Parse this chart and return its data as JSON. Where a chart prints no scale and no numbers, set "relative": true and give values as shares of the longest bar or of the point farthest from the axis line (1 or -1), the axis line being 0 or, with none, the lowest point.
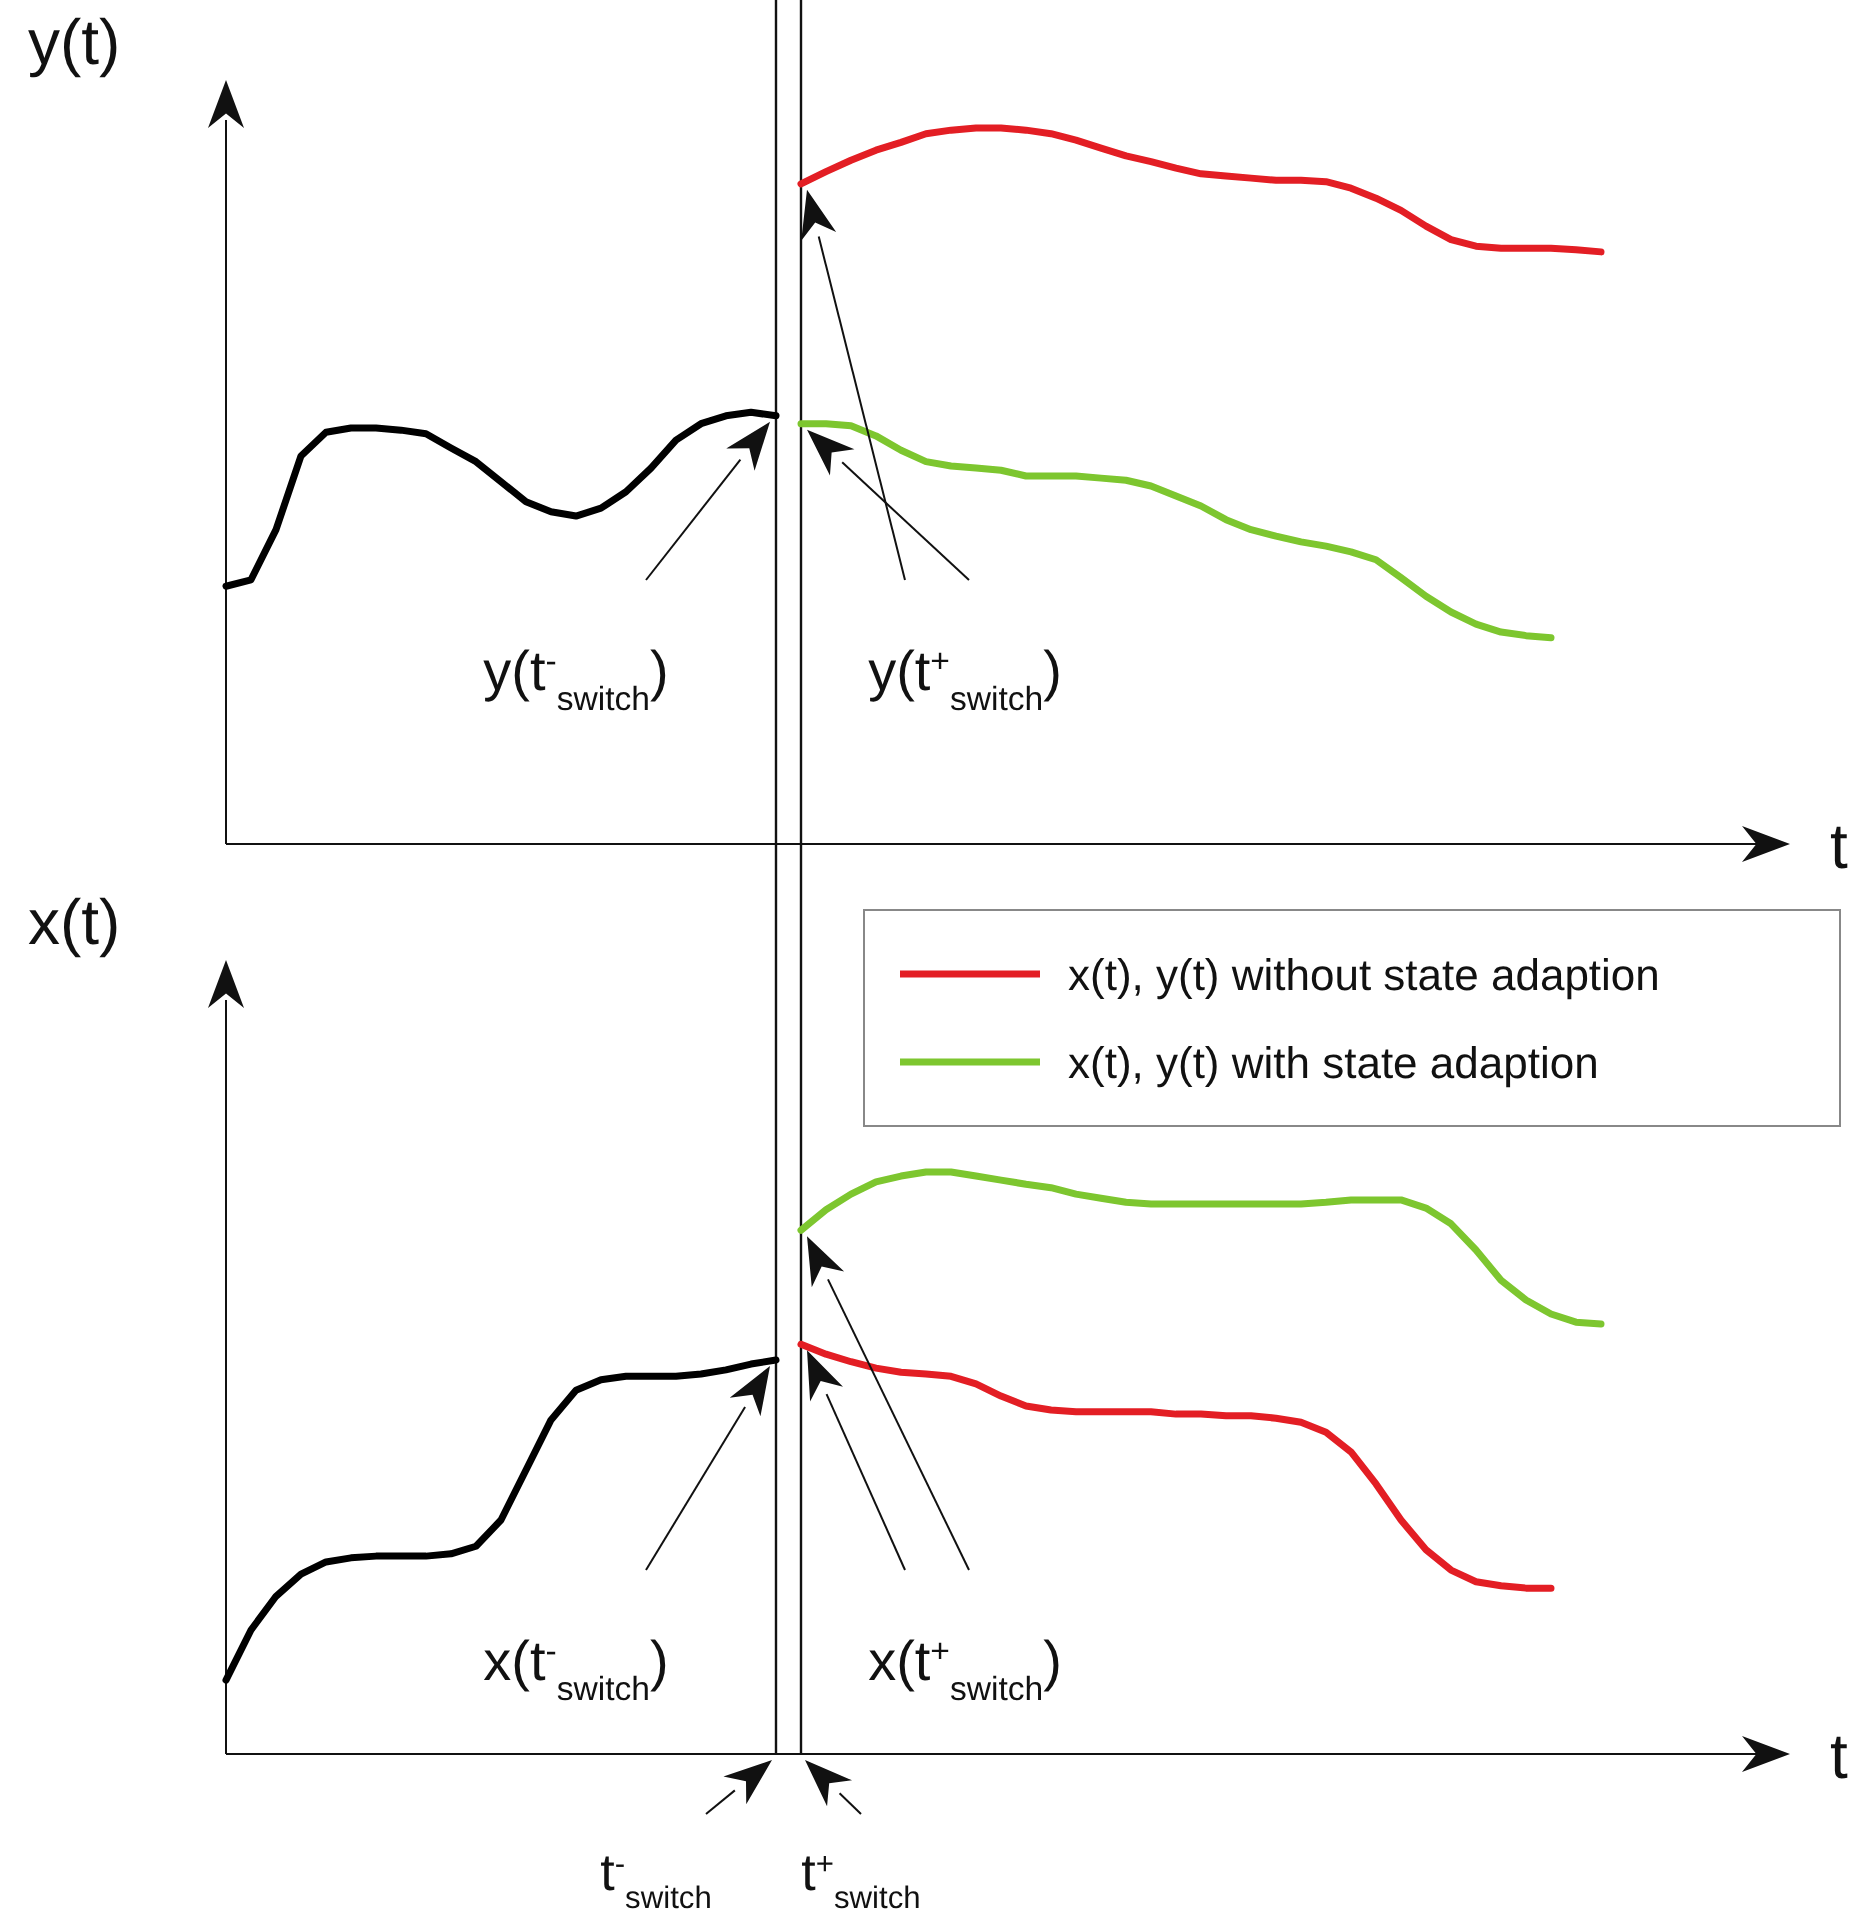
{
  "chart_data": [
    {
      "type": "line",
      "relative": true,
      "ylabel": "y(t)",
      "xlabel": "t",
      "legend": false,
      "categories": [
        null,
        null,
        null,
        null,
        null,
        null,
        null,
        null,
        null,
        null,
        null,
        null,
        null,
        null,
        null,
        null,
        null,
        null,
        null,
        null,
        null,
        null,
        null,
        null,
        null,
        null,
        null,
        null,
        null,
        null,
        null,
        null,
        null,
        null,
        null,
        null,
        null,
        null,
        null,
        null,
        null,
        null,
        null,
        null,
        null,
        null,
        null,
        null,
        null,
        null,
        null,
        null,
        null,
        null,
        null,
        null,
        null,
        null,
        null,
        null,
        null,
        null,
        null
      ],
      "series": [
        {
          "color": "#000000",
          "values": [
            0.36,
            0.369,
            0.439,
            0.542,
            0.575,
            0.581,
            0.581,
            0.578,
            0.573,
            0.553,
            0.534,
            0.506,
            0.478,
            0.464,
            0.458,
            0.469,
            0.492,
            0.525,
            0.564,
            0.587,
            0.598,
            0.603,
            0.598,
            null,
            null,
            null,
            null,
            null,
            null,
            null,
            null,
            null,
            null,
            null,
            null,
            null,
            null,
            null,
            null,
            null,
            null,
            null,
            null,
            null,
            null,
            null,
            null,
            null,
            null,
            null,
            null,
            null,
            null,
            null,
            null,
            null,
            null,
            null,
            null,
            null,
            null,
            null,
            null
          ]
        },
        {
          "color": "#e31e24",
          "values": [
            null,
            null,
            null,
            null,
            null,
            null,
            null,
            null,
            null,
            null,
            null,
            null,
            null,
            null,
            null,
            null,
            null,
            null,
            null,
            null,
            null,
            null,
            null,
            0.922,
            0.939,
            0.955,
            0.969,
            0.98,
            0.992,
            0.997,
            1,
            1,
            0.997,
            0.992,
            0.983,
            0.972,
            0.961,
            0.953,
            0.944,
            0.936,
            0.933,
            0.93,
            0.927,
            0.927,
            0.925,
            0.916,
            0.902,
            0.885,
            0.863,
            0.844,
            0.835,
            0.832,
            0.832,
            0.832,
            0.83,
            0.827,
            null,
            null,
            null,
            null,
            null,
            null,
            null
          ]
        },
        {
          "color": "#7dc62f",
          "values": [
            null,
            null,
            null,
            null,
            null,
            null,
            null,
            null,
            null,
            null,
            null,
            null,
            null,
            null,
            null,
            null,
            null,
            null,
            null,
            null,
            null,
            null,
            null,
            0.587,
            0.587,
            0.584,
            0.57,
            0.55,
            0.534,
            0.528,
            0.525,
            0.522,
            0.514,
            0.514,
            0.514,
            0.511,
            0.508,
            0.5,
            0.486,
            0.472,
            0.453,
            0.439,
            0.43,
            0.422,
            0.416,
            0.408,
            0.397,
            0.372,
            0.346,
            0.324,
            0.307,
            0.296,
            0.291,
            0.288,
            null,
            null,
            null,
            null,
            null,
            null,
            null,
            null,
            null
          ]
        }
      ],
      "annotations": [
        "y(t$^{-}$$_{switch}$)",
        "y(t$^{+}$$_{switch}$)"
      ]
    },
    {
      "type": "line",
      "relative": true,
      "ylabel": "x(t)",
      "xlabel": "t",
      "legend": "top right",
      "categories": [
        null,
        null,
        null,
        null,
        null,
        null,
        null,
        null,
        null,
        null,
        null,
        null,
        null,
        null,
        null,
        null,
        null,
        null,
        null,
        null,
        null,
        null,
        null,
        null,
        null,
        null,
        null,
        null,
        null,
        null,
        null,
        null,
        null,
        null,
        null,
        null,
        null,
        null,
        null,
        null,
        null,
        null,
        null,
        null,
        null,
        null,
        null,
        null,
        null,
        null,
        null,
        null,
        null,
        null,
        null,
        null,
        null,
        null,
        null,
        null,
        null,
        null,
        null
      ],
      "series": [
        {
          "color": "#000000",
          "values": [
            0.127,
            0.213,
            0.271,
            0.309,
            0.33,
            0.337,
            0.34,
            0.34,
            0.34,
            0.344,
            0.357,
            0.402,
            0.488,
            0.574,
            0.625,
            0.643,
            0.649,
            0.649,
            0.649,
            0.653,
            0.66,
            0.67,
            0.677,
            null,
            null,
            null,
            null,
            null,
            null,
            null,
            null,
            null,
            null,
            null,
            null,
            null,
            null,
            null,
            null,
            null,
            null,
            null,
            null,
            null,
            null,
            null,
            null,
            null,
            null,
            null,
            null,
            null,
            null,
            null,
            null,
            null,
            null,
            null,
            null,
            null,
            null,
            null,
            null
          ]
        },
        {
          "name": "x(t), y(t) without state adaption",
          "color": "#e31e24",
          "values": [
            null,
            null,
            null,
            null,
            null,
            null,
            null,
            null,
            null,
            null,
            null,
            null,
            null,
            null,
            null,
            null,
            null,
            null,
            null,
            null,
            null,
            null,
            null,
            0.704,
            0.687,
            0.674,
            0.663,
            0.656,
            0.653,
            0.649,
            0.636,
            0.615,
            0.598,
            0.591,
            0.588,
            0.588,
            0.588,
            0.588,
            0.584,
            0.584,
            0.581,
            0.581,
            0.577,
            0.57,
            0.553,
            0.519,
            0.464,
            0.402,
            0.351,
            0.316,
            0.296,
            0.289,
            0.285,
            0.285,
            null,
            null,
            null,
            null,
            null,
            null,
            null,
            null,
            null
          ]
        },
        {
          "name": "x(t), y(t) with state adaption",
          "color": "#7dc62f",
          "values": [
            null,
            null,
            null,
            null,
            null,
            null,
            null,
            null,
            null,
            null,
            null,
            null,
            null,
            null,
            null,
            null,
            null,
            null,
            null,
            null,
            null,
            null,
            null,
            0.9,
            0.935,
            0.962,
            0.983,
            0.993,
            1,
            1,
            0.993,
            0.986,
            0.979,
            0.973,
            0.962,
            0.955,
            0.948,
            0.945,
            0.945,
            0.945,
            0.945,
            0.945,
            0.945,
            0.945,
            0.948,
            0.952,
            0.952,
            0.952,
            0.938,
            0.911,
            0.866,
            0.814,
            0.78,
            0.756,
            0.742,
            0.739,
            null,
            null,
            null,
            null,
            null,
            null,
            null
          ]
        }
      ],
      "annotations": [
        "x(t$^{-}$$_{switch}$)",
        "x(t$^{+}$$_{switch}$)",
        "t$^{-}$$_{switch}$",
        "t$^{+}$$_{switch}$"
      ]
    }
  ]
}
